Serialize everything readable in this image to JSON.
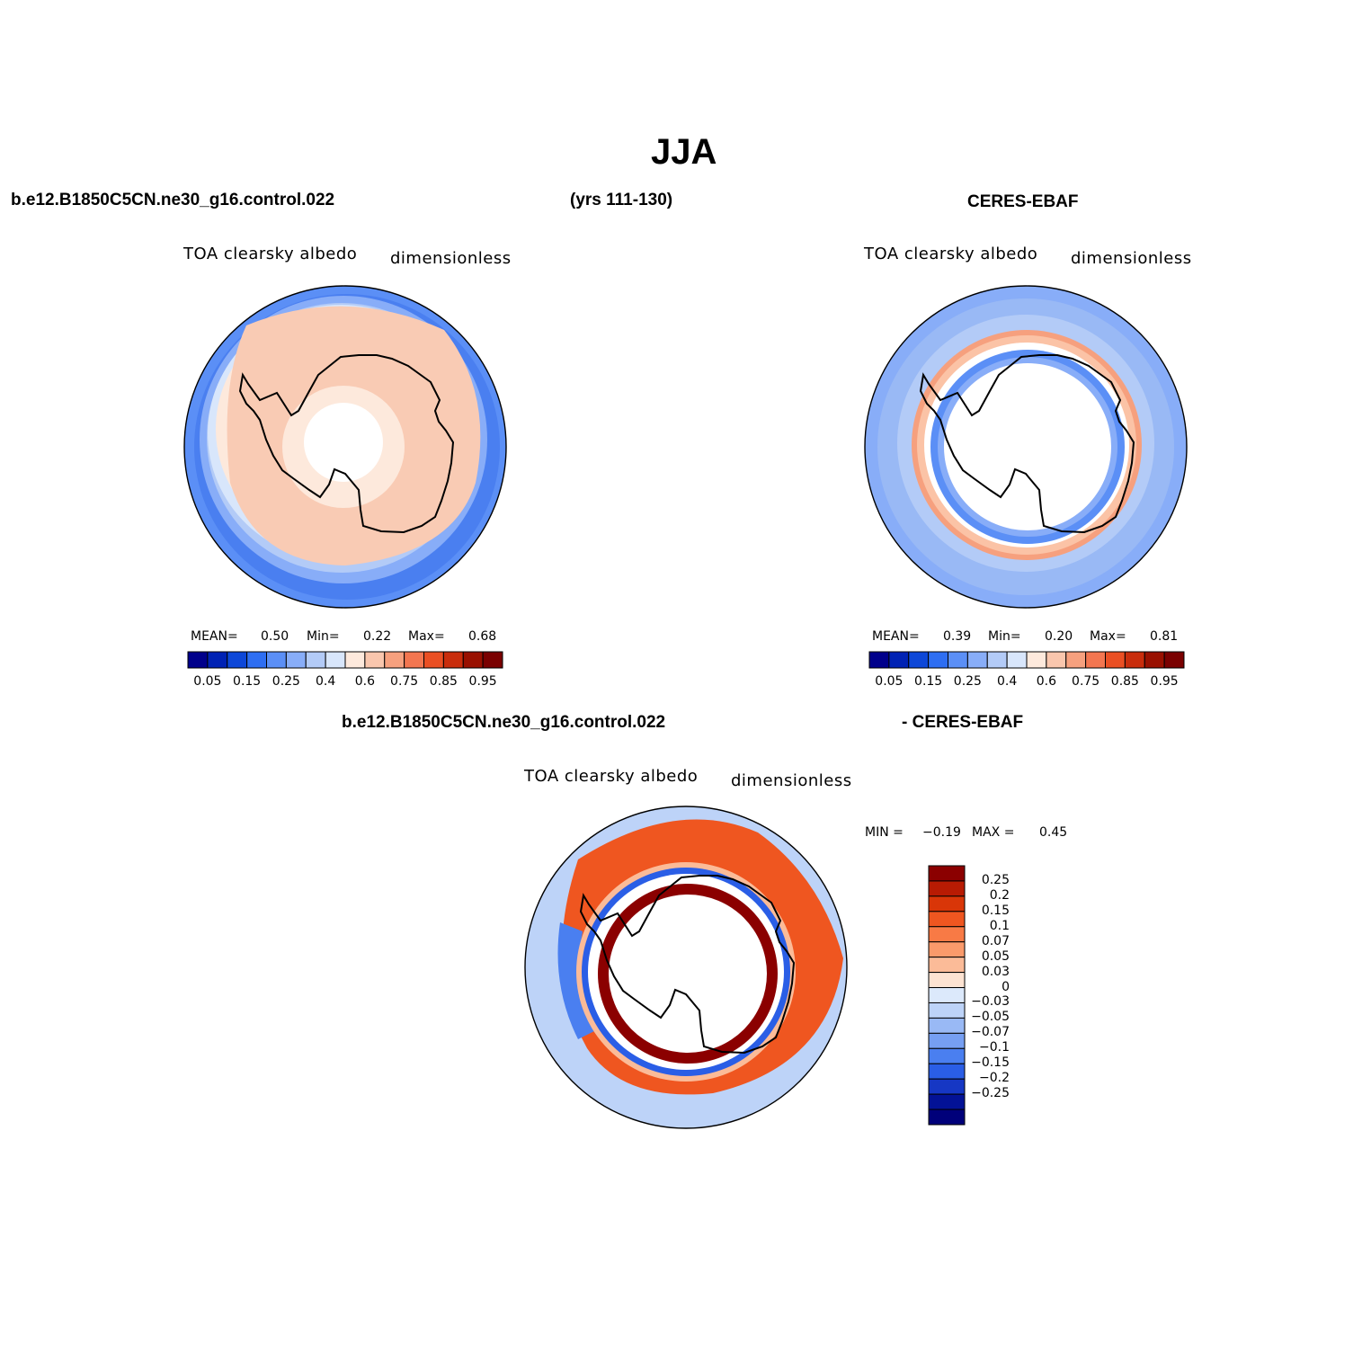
{
  "page": {
    "season_title": "JJA"
  },
  "panels": {
    "model": {
      "case_name": "b.e12.B1850C5CN.ne30_g16.control.022",
      "years": "(yrs 111-130)",
      "variable": "TOA clearsky albedo",
      "units": "dimensionless",
      "stats": {
        "mean_label": "MEAN=",
        "mean": "0.50",
        "min_label": "Min=",
        "min": "0.22",
        "max_label": "Max=",
        "max": "0.68"
      }
    },
    "obs": {
      "case_name": "CERES-EBAF",
      "variable": "TOA clearsky albedo",
      "units": "dimensionless",
      "stats": {
        "mean_label": "MEAN=",
        "mean": "0.39",
        "min_label": "Min=",
        "min": "0.20",
        "max_label": "Max=",
        "max": "0.81"
      }
    },
    "diff": {
      "case_name": "b.e12.B1850C5CN.ne30_g16.control.022",
      "minus_label": "- CERES-EBAF",
      "variable": "TOA clearsky albedo",
      "units": "dimensionless",
      "stats": {
        "min_label": "MIN =",
        "min": "−0.19",
        "max_label": "MAX =",
        "max": "0.45"
      }
    }
  },
  "colorbars": {
    "abs": {
      "colors": [
        "#00008b",
        "#0022b4",
        "#0d47d8",
        "#2e6ef2",
        "#5b8ff6",
        "#88adf8",
        "#b3cbf7",
        "#d8e6fb",
        "#fde9dc",
        "#f9c6ad",
        "#f6a07e",
        "#f37650",
        "#ea4f23",
        "#c92d0c",
        "#991000",
        "#7a0000"
      ],
      "tick_labels": [
        "0.05",
        "0.15",
        "0.25",
        "0.4",
        "0.6",
        "0.75",
        "0.85",
        "0.95"
      ]
    },
    "diff": {
      "colors": [
        "#8b0000",
        "#b81b03",
        "#d93608",
        "#ef5620",
        "#f87a45",
        "#fa9a6b",
        "#fbbb98",
        "#fde3d2",
        "#dce9fb",
        "#bdd3f8",
        "#99b9f5",
        "#769ff2",
        "#4a7ff0",
        "#2a5ee6",
        "#1637c4",
        "#031296",
        "#00007a"
      ],
      "tick_labels": [
        "0.25",
        "0.2",
        "0.15",
        "0.1",
        "0.07",
        "0.05",
        "0.03",
        "0",
        "−0.03",
        "−0.05",
        "−0.07",
        "−0.1",
        "−0.15",
        "−0.2",
        "−0.25"
      ]
    }
  }
}
